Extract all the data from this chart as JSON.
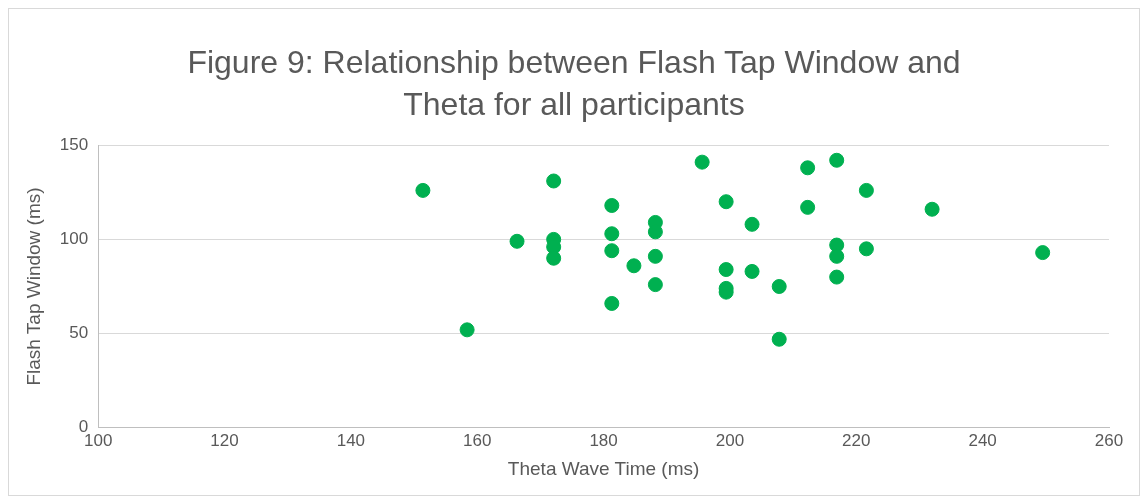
{
  "chart_data": {
    "type": "scatter",
    "title": "Figure 9: Relationship between Flash Tap Window and Theta for all participants",
    "xlabel": "Theta Wave Time (ms)",
    "ylabel": "Flash Tap Window (ms)",
    "xlim": [
      100,
      260
    ],
    "xticks": [
      100,
      120,
      140,
      160,
      180,
      200,
      220,
      240,
      260
    ],
    "ylim": [
      0,
      150
    ],
    "yticks": [
      0,
      50,
      100,
      150
    ],
    "grid": "y",
    "legend": false,
    "marker": "circle",
    "series": [
      {
        "color": "#00b050",
        "x": [
          151.4,
          158.4,
          166.3,
          172.1,
          172.1,
          172.1,
          172.1,
          181.3,
          181.3,
          181.3,
          181.3,
          184.8,
          188.2,
          188.2,
          188.2,
          188.2,
          195.6,
          199.4,
          199.4,
          199.4,
          199.4,
          203.5,
          203.5,
          207.8,
          207.8,
          212.3,
          212.3,
          216.9,
          216.9,
          216.9,
          216.9,
          221.6,
          221.6,
          232,
          249.5
        ],
        "values": [
          126,
          52,
          99,
          131,
          100,
          96,
          90,
          118,
          103,
          94,
          66,
          86,
          109,
          104,
          91,
          76,
          141,
          120,
          84,
          74,
          72,
          108,
          83,
          75,
          47,
          138,
          117,
          142,
          97,
          91,
          80,
          126,
          95,
          116,
          93
        ]
      }
    ]
  }
}
